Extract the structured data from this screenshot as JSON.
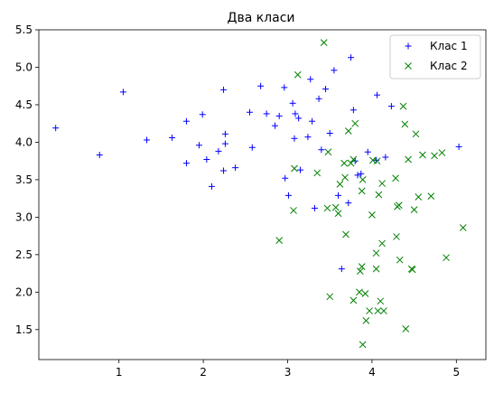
{
  "chart_data": {
    "type": "scatter",
    "title": "Два класи",
    "xlabel": "",
    "ylabel": "",
    "xlim": [
      0.05,
      5.35
    ],
    "ylim": [
      1.1,
      5.5
    ],
    "xticks": [
      1,
      2,
      3,
      4,
      5
    ],
    "yticks": [
      1.5,
      2.0,
      2.5,
      3.0,
      3.5,
      4.0,
      4.5,
      5.0,
      5.5
    ],
    "xtick_labels": [
      "1",
      "2",
      "3",
      "4",
      "5"
    ],
    "ytick_labels": [
      "1.5",
      "2.0",
      "2.5",
      "3.0",
      "3.5",
      "4.0",
      "4.5",
      "5.0",
      "5.5"
    ],
    "grid": false,
    "legend_position": "top-right",
    "series": [
      {
        "name": "Клас 1",
        "marker": "plus",
        "color": "#0000ff",
        "points": [
          [
            0.25,
            4.19
          ],
          [
            0.77,
            3.83
          ],
          [
            1.05,
            4.67
          ],
          [
            1.33,
            4.03
          ],
          [
            1.63,
            4.06
          ],
          [
            1.8,
            3.72
          ],
          [
            1.8,
            4.28
          ],
          [
            1.95,
            3.96
          ],
          [
            1.99,
            4.37
          ],
          [
            2.04,
            3.77
          ],
          [
            2.1,
            3.41
          ],
          [
            2.18,
            3.88
          ],
          [
            2.24,
            4.7
          ],
          [
            2.24,
            3.62
          ],
          [
            2.26,
            3.98
          ],
          [
            2.26,
            4.11
          ],
          [
            2.38,
            3.66
          ],
          [
            2.55,
            4.4
          ],
          [
            2.58,
            3.93
          ],
          [
            2.68,
            4.75
          ],
          [
            2.75,
            4.38
          ],
          [
            2.85,
            4.22
          ],
          [
            2.9,
            4.35
          ],
          [
            2.96,
            4.73
          ],
          [
            2.97,
            3.52
          ],
          [
            3.01,
            3.29
          ],
          [
            3.06,
            4.52
          ],
          [
            3.08,
            4.05
          ],
          [
            3.09,
            4.38
          ],
          [
            3.13,
            4.32
          ],
          [
            3.15,
            3.63
          ],
          [
            3.24,
            4.07
          ],
          [
            3.27,
            4.84
          ],
          [
            3.29,
            4.28
          ],
          [
            3.32,
            3.12
          ],
          [
            3.37,
            4.58
          ],
          [
            3.4,
            3.9
          ],
          [
            3.45,
            4.71
          ],
          [
            3.5,
            4.12
          ],
          [
            3.55,
            4.96
          ],
          [
            3.6,
            3.29
          ],
          [
            3.64,
            2.31
          ],
          [
            3.72,
            3.19
          ],
          [
            3.75,
            5.13
          ],
          [
            3.78,
            4.43
          ],
          [
            3.8,
            3.75
          ],
          [
            3.83,
            3.56
          ],
          [
            3.87,
            3.58
          ],
          [
            3.95,
            3.87
          ],
          [
            4.05,
            3.76
          ],
          [
            4.06,
            4.63
          ],
          [
            4.16,
            3.8
          ],
          [
            4.23,
            4.48
          ],
          [
            5.03,
            3.94
          ]
        ]
      },
      {
        "name": "Клас 2",
        "marker": "x",
        "color": "#008000",
        "points": [
          [
            2.9,
            2.69
          ],
          [
            3.07,
            3.09
          ],
          [
            3.08,
            3.65
          ],
          [
            3.12,
            4.9
          ],
          [
            3.35,
            3.59
          ],
          [
            3.43,
            5.33
          ],
          [
            3.47,
            3.12
          ],
          [
            3.48,
            3.87
          ],
          [
            3.5,
            1.94
          ],
          [
            3.57,
            3.13
          ],
          [
            3.6,
            3.05
          ],
          [
            3.62,
            3.44
          ],
          [
            3.67,
            3.72
          ],
          [
            3.68,
            3.53
          ],
          [
            3.69,
            2.77
          ],
          [
            3.72,
            4.15
          ],
          [
            3.75,
            3.72
          ],
          [
            3.78,
            1.89
          ],
          [
            3.78,
            3.77
          ],
          [
            3.8,
            4.25
          ],
          [
            3.85,
            2.0
          ],
          [
            3.86,
            2.28
          ],
          [
            3.88,
            2.34
          ],
          [
            3.88,
            3.35
          ],
          [
            3.89,
            1.3
          ],
          [
            3.89,
            3.5
          ],
          [
            3.92,
            1.98
          ],
          [
            3.93,
            1.62
          ],
          [
            3.97,
            1.75
          ],
          [
            4.0,
            3.03
          ],
          [
            4.01,
            3.76
          ],
          [
            4.05,
            2.52
          ],
          [
            4.05,
            2.31
          ],
          [
            4.06,
            3.75
          ],
          [
            4.07,
            1.75
          ],
          [
            4.08,
            3.3
          ],
          [
            4.1,
            1.88
          ],
          [
            4.12,
            2.65
          ],
          [
            4.12,
            3.45
          ],
          [
            4.14,
            1.75
          ],
          [
            4.28,
            3.52
          ],
          [
            4.29,
            2.74
          ],
          [
            4.3,
            3.14
          ],
          [
            4.32,
            3.16
          ],
          [
            4.33,
            2.43
          ],
          [
            4.37,
            4.48
          ],
          [
            4.39,
            4.24
          ],
          [
            4.4,
            1.51
          ],
          [
            4.43,
            3.77
          ],
          [
            4.47,
            2.31
          ],
          [
            4.48,
            2.3
          ],
          [
            4.5,
            3.1
          ],
          [
            4.52,
            4.11
          ],
          [
            4.55,
            3.27
          ],
          [
            4.6,
            3.83
          ],
          [
            4.7,
            3.28
          ],
          [
            4.74,
            3.82
          ],
          [
            4.83,
            3.86
          ],
          [
            4.88,
            2.46
          ],
          [
            5.08,
            2.86
          ]
        ]
      }
    ]
  }
}
